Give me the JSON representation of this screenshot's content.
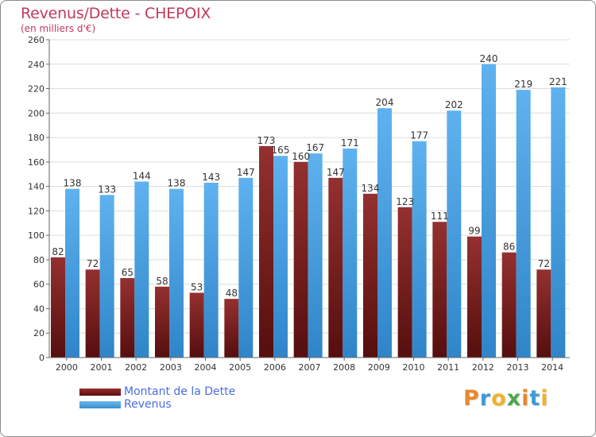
{
  "header": {
    "title": "Revenus/Dette - CHEPOIX",
    "subtitle": "(en milliers d'€)"
  },
  "chart_data": {
    "type": "bar",
    "title": "Revenus/Dette - CHEPOIX",
    "ylabel": "(en milliers d'€)",
    "xlabel": "",
    "categories": [
      "2000",
      "2001",
      "2002",
      "2003",
      "2004",
      "2005",
      "2006",
      "2007",
      "2008",
      "2009",
      "2010",
      "2011",
      "2012",
      "2013",
      "2014"
    ],
    "series": [
      {
        "name": "Montant de la Dette",
        "color": "#7a1e1e",
        "values": [
          82,
          72,
          65,
          58,
          53,
          48,
          173,
          160,
          147,
          134,
          123,
          111,
          99,
          86,
          72
        ]
      },
      {
        "name": "Revenus",
        "color": "#4ea3e3",
        "values": [
          138,
          133,
          144,
          138,
          143,
          147,
          165,
          167,
          171,
          204,
          177,
          202,
          240,
          219,
          221
        ]
      }
    ],
    "ylim": [
      0,
      260
    ],
    "yticks": [
      0,
      20,
      40,
      60,
      80,
      100,
      120,
      140,
      160,
      180,
      200,
      220,
      240,
      260
    ],
    "grid": true,
    "legend_position": "bottom-left"
  },
  "legend": {
    "debt_label": "Montant de la Dette",
    "revenue_label": "Revenus"
  },
  "brand": {
    "letters": [
      "P",
      "r",
      "o",
      "x",
      "i",
      "t",
      "i"
    ],
    "colors": [
      "#e8892c",
      "#3f9ad8",
      "#f0b12a",
      "#4aa84a",
      "#e8892c",
      "#3f9ad8",
      "#f0b12a"
    ]
  }
}
